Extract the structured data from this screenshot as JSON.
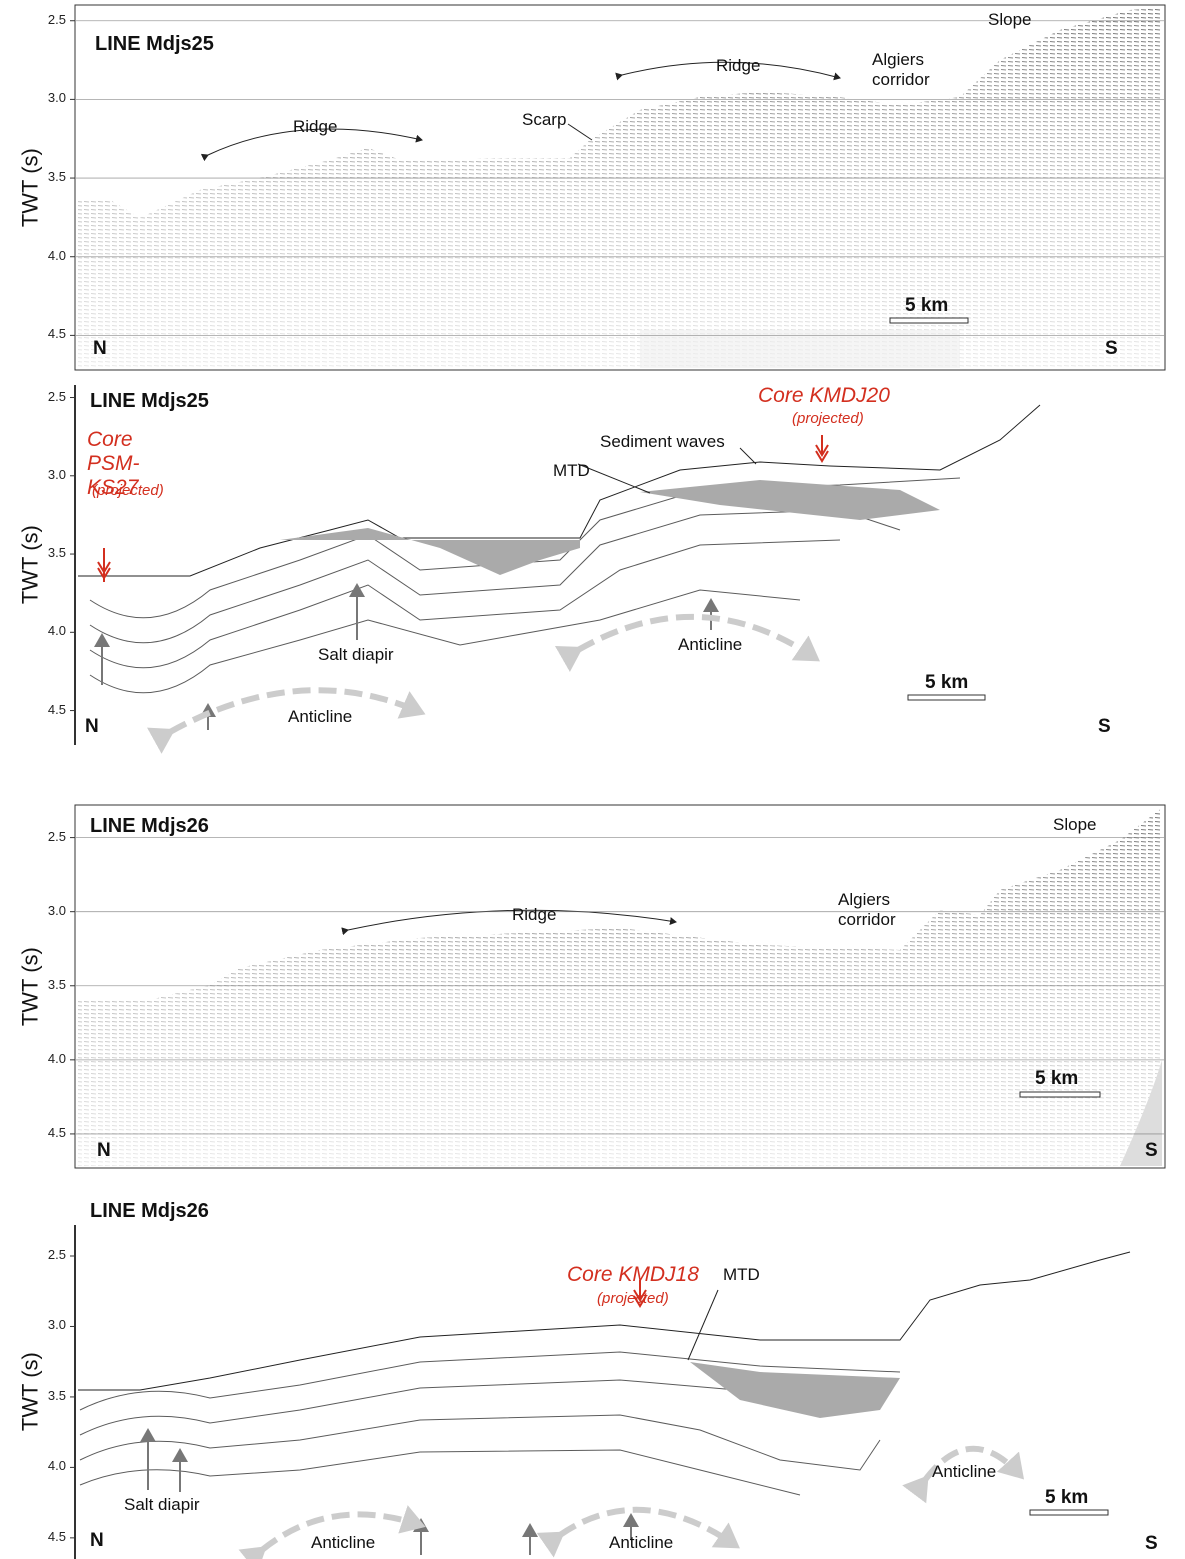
{
  "panels": [
    {
      "title": "LINE Mdjs25",
      "y_axis_label": "TWT (s)",
      "ylim": [
        2.4,
        4.72
      ],
      "yticks": [
        2.5,
        {
          "value": 3,
          "label": "3.0"
        },
        3.5,
        {
          "value": 4,
          "label": "4.0"
        },
        4.5
      ],
      "scale_bar": "5 km",
      "left_label": "N",
      "right_label": "S",
      "annotations": [
        "Ridge",
        "Ridge",
        "Scarp",
        "Algiers corridor",
        "Slope"
      ]
    },
    {
      "title": "LINE Mdjs25",
      "y_axis_label": "TWT (s)",
      "ylim": [
        2.42,
        4.72
      ],
      "yticks": [
        2.5,
        {
          "value": 3,
          "label": "3.0"
        },
        3.5,
        {
          "value": 4,
          "label": "4.0"
        },
        4.5
      ],
      "scale_bar": "5 km",
      "left_label": "N",
      "right_label": "S",
      "annotations": [
        "Core KMDJ20",
        "(projected)",
        "Sediment waves",
        "MTD",
        "Core PSM-KS27",
        "(projected)",
        "Salt diapir",
        "Anticline",
        "Anticline"
      ]
    },
    {
      "title": "LINE Mdjs26",
      "y_axis_label": "TWT (s)",
      "ylim": [
        2.28,
        4.73
      ],
      "yticks": [
        2.5,
        {
          "value": 3,
          "label": "3.0"
        },
        3.5,
        {
          "value": 4,
          "label": "4.0"
        },
        4.5
      ],
      "scale_bar": "5 km",
      "left_label": "N",
      "right_label": "S",
      "annotations": [
        "Ridge",
        "Algiers corridor",
        "Slope"
      ]
    },
    {
      "title": "LINE Mdjs26",
      "y_axis_label": "TWT (s)",
      "ylim": [
        2.28,
        4.65
      ],
      "yticks": [
        2.5,
        {
          "value": 3,
          "label": "3.0"
        },
        3.5,
        {
          "value": 4,
          "label": "4.0"
        },
        4.5
      ],
      "scale_bar": "5 km",
      "left_label": "N",
      "right_label": "S",
      "annotations": [
        "Core KMDJ18",
        "(projected)",
        "MTD",
        "Salt diapir",
        "Anticline",
        "Anticline",
        "Anticline"
      ]
    }
  ]
}
